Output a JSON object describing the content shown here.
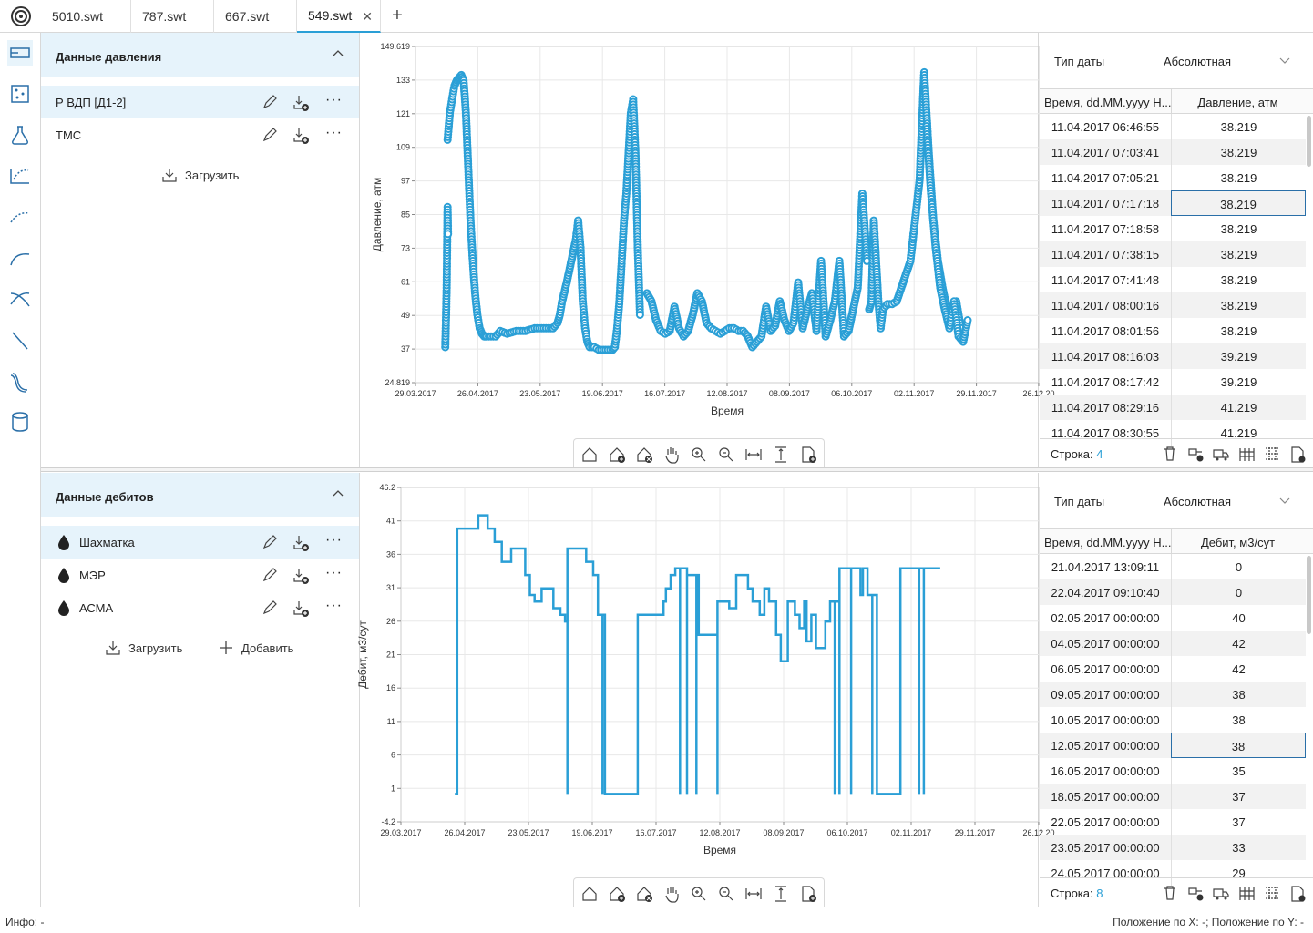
{
  "tabs": [
    {
      "label": "5010.swt"
    },
    {
      "label": "787.swt"
    },
    {
      "label": "667.swt"
    },
    {
      "label": "549.swt",
      "active": true
    }
  ],
  "sidebar_icons": [
    "pressure-data-icon",
    "map-icon",
    "flask-icon",
    "chart-scatter-icon",
    "dotted-curve-icon",
    "curve-icon",
    "crossing-curves-icon",
    "decline-line-icon",
    "s-curves-icon",
    "database-icon"
  ],
  "pressure_panel": {
    "title": "Данные давления",
    "items": [
      {
        "label": "Р ВДП [Д1-2]"
      },
      {
        "label": "ТМС"
      }
    ],
    "load_label": "Загрузить"
  },
  "rate_panel": {
    "title": "Данные дебитов",
    "items": [
      {
        "label": "Шахматка"
      },
      {
        "label": "МЭР"
      },
      {
        "label": "АСМА"
      }
    ],
    "load_label": "Загрузить",
    "add_label": "Добавить"
  },
  "chart_data": [
    {
      "type": "scatter",
      "xlabel": "Время",
      "ylabel": "Давление, атм",
      "ylim": [
        24.819,
        149.619
      ],
      "yticks": [
        "149.619",
        "133",
        "121",
        "109",
        "97",
        "85",
        "73",
        "61",
        "49",
        "37",
        "24.819"
      ],
      "xticks": [
        "29.03.2017",
        "26.04.2017",
        "23.05.2017",
        "19.06.2017",
        "16.07.2017",
        "12.08.2017",
        "08.09.2017",
        "06.10.2017",
        "02.11.2017",
        "29.11.2017",
        "26.12.20"
      ],
      "xlim_days": [
        0,
        272
      ],
      "grid": true,
      "x_unit": "days since 29.03.2017",
      "segments": [
        {
          "x": [
            13,
            13.3,
            13.6,
            14,
            14.2
          ],
          "y": [
            38,
            48,
            60,
            90,
            80
          ]
        },
        {
          "x": [
            14,
            14.5,
            15,
            16,
            17,
            18,
            19,
            20,
            21,
            22,
            23,
            24,
            25,
            26,
            27,
            28,
            29,
            30,
            31,
            33,
            35,
            37,
            40,
            44,
            48,
            52,
            56,
            60,
            62,
            63,
            64,
            66,
            68,
            70,
            71,
            72,
            73,
            74,
            75,
            76,
            78,
            80,
            82,
            84,
            86,
            87,
            88,
            89,
            90,
            91,
            92,
            93,
            94,
            95,
            96,
            97,
            98
          ],
          "y": [
            115,
            120,
            125,
            130,
            135,
            137,
            138,
            139,
            137,
            125,
            105,
            85,
            70,
            58,
            50,
            45,
            43,
            42,
            42,
            42,
            42,
            44,
            43,
            44,
            44,
            45,
            45,
            45,
            47,
            50,
            55,
            62,
            70,
            78,
            85,
            75,
            55,
            45,
            40,
            38,
            38,
            37,
            37,
            37,
            37,
            38,
            45,
            55,
            70,
            85,
            95,
            110,
            125,
            130,
            110,
            75,
            50
          ]
        },
        {
          "x": [
            101,
            103,
            105,
            107,
            109,
            111,
            113,
            115,
            117,
            119,
            121,
            123,
            125,
            127,
            129,
            131,
            133,
            135,
            137,
            139,
            141,
            143,
            145,
            147,
            149,
            151,
            153,
            155,
            157,
            159,
            161,
            163,
            165,
            167,
            169,
            171,
            173,
            175,
            177,
            179,
            181,
            183,
            185,
            187,
            189,
            191,
            193,
            195,
            197
          ],
          "y": [
            58,
            55,
            48,
            44,
            43,
            44,
            53,
            45,
            42,
            44,
            50,
            58,
            55,
            47,
            45,
            44,
            43,
            44,
            45,
            45,
            44,
            44,
            42,
            38,
            40,
            42,
            53,
            44,
            46,
            55,
            48,
            44,
            47,
            62,
            45,
            52,
            58,
            44,
            70,
            42,
            48,
            55,
            70,
            42,
            44,
            52,
            60,
            95,
            70
          ]
        },
        {
          "x": [
            198,
            199,
            200,
            201,
            202,
            203,
            204,
            206,
            208,
            210,
            212,
            214,
            216,
            218,
            220,
            222,
            224,
            226,
            228,
            230,
            232,
            234,
            236,
            238
          ],
          "y": [
            52,
            55,
            85,
            70,
            55,
            45,
            52,
            54,
            54,
            55,
            60,
            65,
            70,
            85,
            100,
            140,
            110,
            85,
            70,
            60,
            52,
            50,
            55,
            45
          ]
        },
        {
          "x": [
            223,
            225,
            227,
            229,
            231,
            233,
            235,
            237,
            239,
            241
          ],
          "y": [
            120,
            95,
            75,
            60,
            52,
            45,
            55,
            42,
            40,
            48
          ]
        }
      ]
    },
    {
      "type": "line",
      "xlabel": "Время",
      "ylabel": "Дебит, м3/сут",
      "ylim": [
        -4.2,
        46.2
      ],
      "yticks": [
        "46.2",
        "41",
        "36",
        "31",
        "26",
        "21",
        "16",
        "11",
        "6",
        "1",
        "-4.2"
      ],
      "xticks": [
        "29.03.2017",
        "26.04.2017",
        "23.05.2017",
        "19.06.2017",
        "16.07.2017",
        "12.08.2017",
        "08.09.2017",
        "06.10.2017",
        "02.11.2017",
        "29.11.2017",
        "26.12.20"
      ],
      "xlim_days": [
        0,
        272
      ],
      "grid": true,
      "x_unit": "days since 29.03.2017",
      "step": [
        [
          23,
          0
        ],
        [
          24,
          0
        ],
        [
          24,
          40
        ],
        [
          33,
          40
        ],
        [
          33,
          42
        ],
        [
          37,
          42
        ],
        [
          37,
          40
        ],
        [
          40,
          40
        ],
        [
          40,
          38
        ],
        [
          43,
          38
        ],
        [
          43,
          35
        ],
        [
          47,
          35
        ],
        [
          47,
          37
        ],
        [
          53,
          37
        ],
        [
          53,
          33
        ],
        [
          55,
          33
        ],
        [
          55,
          30
        ],
        [
          57,
          30
        ],
        [
          57,
          29
        ],
        [
          60,
          29
        ],
        [
          60,
          31
        ],
        [
          65,
          31
        ],
        [
          65,
          28
        ],
        [
          68,
          28
        ],
        [
          68,
          27
        ],
        [
          70,
          27
        ],
        [
          70,
          26
        ],
        [
          71,
          26
        ],
        [
          71,
          0
        ],
        [
          71,
          37
        ],
        [
          79,
          37
        ],
        [
          79,
          35
        ],
        [
          82,
          35
        ],
        [
          82,
          33
        ],
        [
          84,
          33
        ],
        [
          84,
          27
        ],
        [
          86,
          27
        ],
        [
          86,
          0
        ],
        [
          86,
          27
        ],
        [
          87,
          27
        ],
        [
          87,
          0
        ],
        [
          101,
          0
        ],
        [
          101,
          27
        ],
        [
          112,
          27
        ],
        [
          112,
          29
        ],
        [
          113,
          29
        ],
        [
          113,
          31
        ],
        [
          115,
          31
        ],
        [
          115,
          33
        ],
        [
          117,
          33
        ],
        [
          117,
          34
        ],
        [
          119,
          34
        ],
        [
          119,
          0
        ],
        [
          119,
          34
        ],
        [
          122,
          34
        ],
        [
          122,
          0
        ],
        [
          122,
          33
        ],
        [
          126,
          33
        ],
        [
          126,
          0
        ],
        [
          126,
          33
        ],
        [
          127,
          33
        ],
        [
          127,
          24
        ],
        [
          135,
          24
        ],
        [
          135,
          0
        ],
        [
          135,
          29
        ],
        [
          140,
          29
        ],
        [
          140,
          28
        ],
        [
          143,
          28
        ],
        [
          143,
          33
        ],
        [
          148,
          33
        ],
        [
          148,
          31
        ],
        [
          150,
          31
        ],
        [
          150,
          29
        ],
        [
          153,
          29
        ],
        [
          153,
          27
        ],
        [
          155,
          27
        ],
        [
          155,
          31
        ],
        [
          157,
          31
        ],
        [
          157,
          29
        ],
        [
          160,
          29
        ],
        [
          160,
          24
        ],
        [
          162,
          24
        ],
        [
          162,
          20
        ],
        [
          165,
          20
        ],
        [
          165,
          29
        ],
        [
          168,
          29
        ],
        [
          168,
          27
        ],
        [
          170,
          27
        ],
        [
          170,
          25
        ],
        [
          172,
          25
        ],
        [
          172,
          29
        ],
        [
          173,
          29
        ],
        [
          173,
          23
        ],
        [
          175,
          23
        ],
        [
          175,
          27
        ],
        [
          177,
          27
        ],
        [
          177,
          22
        ],
        [
          181,
          22
        ],
        [
          181,
          26
        ],
        [
          183,
          26
        ],
        [
          183,
          29
        ],
        [
          185,
          29
        ],
        [
          185,
          0
        ],
        [
          185,
          29
        ],
        [
          187,
          29
        ],
        [
          187,
          0
        ],
        [
          187,
          34
        ],
        [
          192,
          34
        ],
        [
          192,
          0
        ],
        [
          192,
          34
        ],
        [
          196,
          34
        ],
        [
          196,
          30
        ],
        [
          197,
          30
        ],
        [
          197,
          34
        ],
        [
          199,
          34
        ],
        [
          199,
          30
        ],
        [
          201,
          30
        ],
        [
          201,
          0
        ],
        [
          201,
          30
        ],
        [
          203,
          30
        ],
        [
          203,
          0
        ],
        [
          213,
          0
        ],
        [
          213,
          34
        ],
        [
          221,
          34
        ],
        [
          221,
          0
        ],
        [
          221,
          34
        ],
        [
          223,
          34
        ],
        [
          223,
          0
        ],
        [
          223,
          34
        ],
        [
          230,
          34
        ]
      ]
    }
  ],
  "pressure_toolbar": [
    "home-icon",
    "add-home-icon",
    "remove-home-icon",
    "pan-hand-icon",
    "zoom-in-icon",
    "zoom-out-icon",
    "fit-horizontal-icon",
    "fit-vertical-icon",
    "export-icon"
  ],
  "pressure_table": {
    "date_type_label": "Тип даты",
    "date_type_value": "Абсолютная",
    "col1": "Время, dd.MM.yyyy H...",
    "col2": "Давление, атм",
    "rows": [
      [
        "11.04.2017 06:46:55",
        "38.219"
      ],
      [
        "11.04.2017 07:03:41",
        "38.219"
      ],
      [
        "11.04.2017 07:05:21",
        "38.219"
      ],
      [
        "11.04.2017 07:17:18",
        "38.219"
      ],
      [
        "11.04.2017 07:18:58",
        "38.219"
      ],
      [
        "11.04.2017 07:38:15",
        "38.219"
      ],
      [
        "11.04.2017 07:41:48",
        "38.219"
      ],
      [
        "11.04.2017 08:00:16",
        "38.219"
      ],
      [
        "11.04.2017 08:01:56",
        "38.219"
      ],
      [
        "11.04.2017 08:16:03",
        "39.219"
      ],
      [
        "11.04.2017 08:17:42",
        "39.219"
      ],
      [
        "11.04.2017 08:29:16",
        "41.219"
      ],
      [
        "11.04.2017 08:30:55",
        "41.219"
      ]
    ],
    "selected_row": 4,
    "row_label": "Строка:",
    "row_value": "4"
  },
  "rate_table": {
    "date_type_label": "Тип даты",
    "date_type_value": "Абсолютная",
    "col1": "Время, dd.MM.yyyy H...",
    "col2": "Дебит, м3/сут",
    "rows": [
      [
        "21.04.2017 13:09:11",
        "0"
      ],
      [
        "22.04.2017 09:10:40",
        "0"
      ],
      [
        "02.05.2017 00:00:00",
        "40"
      ],
      [
        "04.05.2017 00:00:00",
        "42"
      ],
      [
        "06.05.2017 00:00:00",
        "42"
      ],
      [
        "09.05.2017 00:00:00",
        "38"
      ],
      [
        "10.05.2017 00:00:00",
        "38"
      ],
      [
        "12.05.2017 00:00:00",
        "38"
      ],
      [
        "16.05.2017 00:00:00",
        "35"
      ],
      [
        "18.05.2017 00:00:00",
        "37"
      ],
      [
        "22.05.2017 00:00:00",
        "37"
      ],
      [
        "23.05.2017 00:00:00",
        "33"
      ],
      [
        "24.05.2017 00:00:00",
        "29"
      ]
    ],
    "selected_row": 8,
    "row_label": "Строка:",
    "row_value": "8"
  },
  "status": {
    "info": "Инфо: -",
    "position": "Положение по X: -; Положение по Y: -"
  },
  "colors": {
    "accent": "#2a9fd6",
    "selected_bg": "#e6f3fb"
  }
}
